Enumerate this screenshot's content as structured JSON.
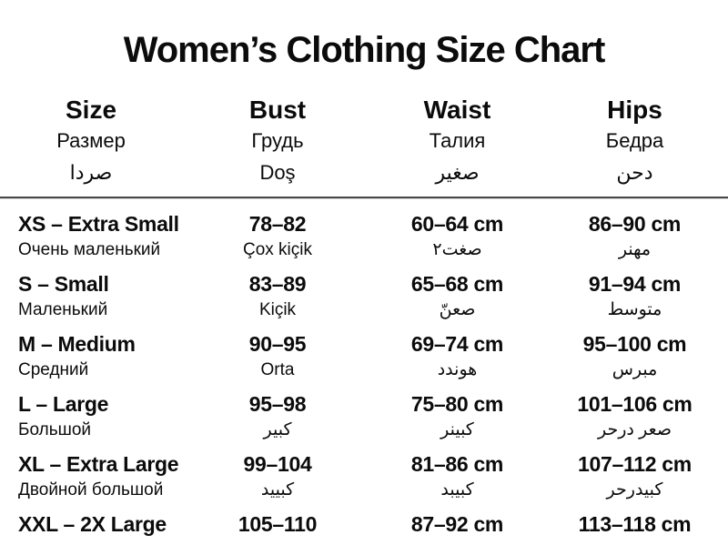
{
  "title": "Women’s Clothing Size Chart",
  "header": {
    "columns": [
      {
        "en": "Size",
        "ru": "Размер",
        "alt": "صردا"
      },
      {
        "en": "Bust",
        "ru": "Грудь",
        "alt": "Doş"
      },
      {
        "en": "Waist",
        "ru": "Талия",
        "alt": "صغير"
      },
      {
        "en": "Hips",
        "ru": "Бедра",
        "alt": "دحن"
      }
    ]
  },
  "rows": [
    {
      "size": "XS – Extra Small",
      "size_sub": "Очень маленький",
      "bust": "78–82",
      "bust_sub": "Çox kiçik",
      "waist": "60–64 cm",
      "waist_sub": "صغت٢",
      "hips": "86–90 cm",
      "hips_sub": "مهنر"
    },
    {
      "size": "S – Small",
      "size_sub": "Маленький",
      "bust": "83–89",
      "bust_sub": "Kiçik",
      "waist": "65–68 cm",
      "waist_sub": "صعنّ",
      "hips": "91–94 cm",
      "hips_sub": "متوسط"
    },
    {
      "size": "M – Medium",
      "size_sub": "Средний",
      "bust": "90–95",
      "bust_sub": "Orta",
      "waist": "69–74 cm",
      "waist_sub": "هوندد",
      "hips": "95–100 cm",
      "hips_sub": "مبرس"
    },
    {
      "size": "L – Large",
      "size_sub": "Большой",
      "bust": "95–98",
      "bust_sub": "كبير",
      "waist": "75–80 cm",
      "waist_sub": "كبينر",
      "hips": "101–106 cm",
      "hips_sub": "صعر درحر"
    },
    {
      "size": "XL – Extra Large",
      "size_sub": "Двойной большой",
      "bust": "99–104",
      "bust_sub": "كبييد",
      "waist": "81–86 cm",
      "waist_sub": "كبيبد",
      "hips": "107–112 cm",
      "hips_sub": "كبيدرحر"
    },
    {
      "size": "XXL – 2X Large",
      "size_sub": "",
      "bust": "105–110",
      "bust_sub": "",
      "waist": "87–92 cm",
      "waist_sub": "",
      "hips": "113–118 cm",
      "hips_sub": ""
    }
  ]
}
